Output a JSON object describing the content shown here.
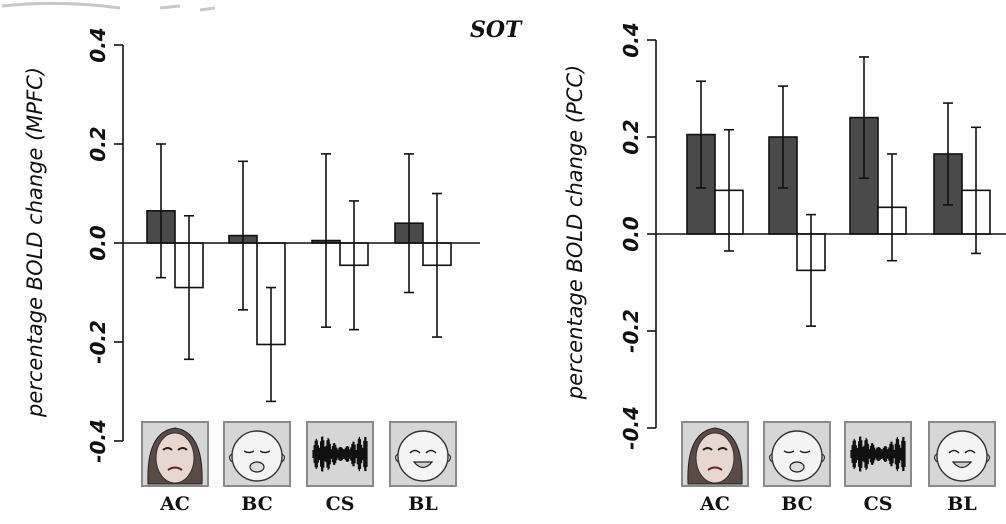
{
  "colors": {
    "bar_dark": "#4a4a4a",
    "bar_light": "#ffffff",
    "axis": "#111111",
    "icon_frame": "#8a8a8a",
    "icon_bg": "#d6d6d6"
  },
  "chart_data": [
    {
      "type": "bar",
      "title": "SOT",
      "ylabel": "percentage BOLD change (MPFC)",
      "ylim": [
        -0.4,
        0.4
      ],
      "yticks": [
        -0.4,
        -0.2,
        0.0,
        0.2,
        0.4
      ],
      "ytick_labels": [
        "-0.4",
        "-0.2",
        "0.0",
        "0.2",
        "0.4"
      ],
      "categories": [
        "AC",
        "BC",
        "CS",
        "BL"
      ],
      "category_icons": [
        "adult-crying-face-icon",
        "baby-crying-face-icon",
        "sound-waveform-icon",
        "baby-laughing-face-icon"
      ],
      "series": [
        {
          "values": [
            0.065,
            0.015,
            0.005,
            0.04
          ],
          "errors": [
            0.135,
            0.15,
            0.175,
            0.14
          ],
          "color": "#4a4a4a"
        },
        {
          "values": [
            -0.09,
            -0.205,
            -0.045,
            -0.045
          ],
          "errors": [
            0.145,
            0.115,
            0.13,
            0.145
          ],
          "color": "#ffffff"
        }
      ]
    },
    {
      "type": "bar",
      "title": "",
      "ylabel": "percentage BOLD change (PCC)",
      "ylim": [
        -0.4,
        0.4
      ],
      "yticks": [
        -0.4,
        -0.2,
        0.0,
        0.2,
        0.4
      ],
      "ytick_labels": [
        "-0.4",
        "-0.2",
        "0.0",
        "0.2",
        "0.4"
      ],
      "categories": [
        "AC",
        "BC",
        "CS",
        "BL"
      ],
      "category_icons": [
        "adult-crying-face-icon",
        "baby-crying-face-icon",
        "sound-waveform-icon",
        "baby-laughing-face-icon"
      ],
      "series": [
        {
          "values": [
            0.205,
            0.2,
            0.24,
            0.165
          ],
          "errors": [
            0.11,
            0.105,
            0.125,
            0.105
          ],
          "color": "#4a4a4a"
        },
        {
          "values": [
            0.09,
            -0.075,
            0.055,
            0.09
          ],
          "errors": [
            0.125,
            0.115,
            0.11,
            0.13
          ],
          "color": "#ffffff"
        }
      ]
    }
  ]
}
